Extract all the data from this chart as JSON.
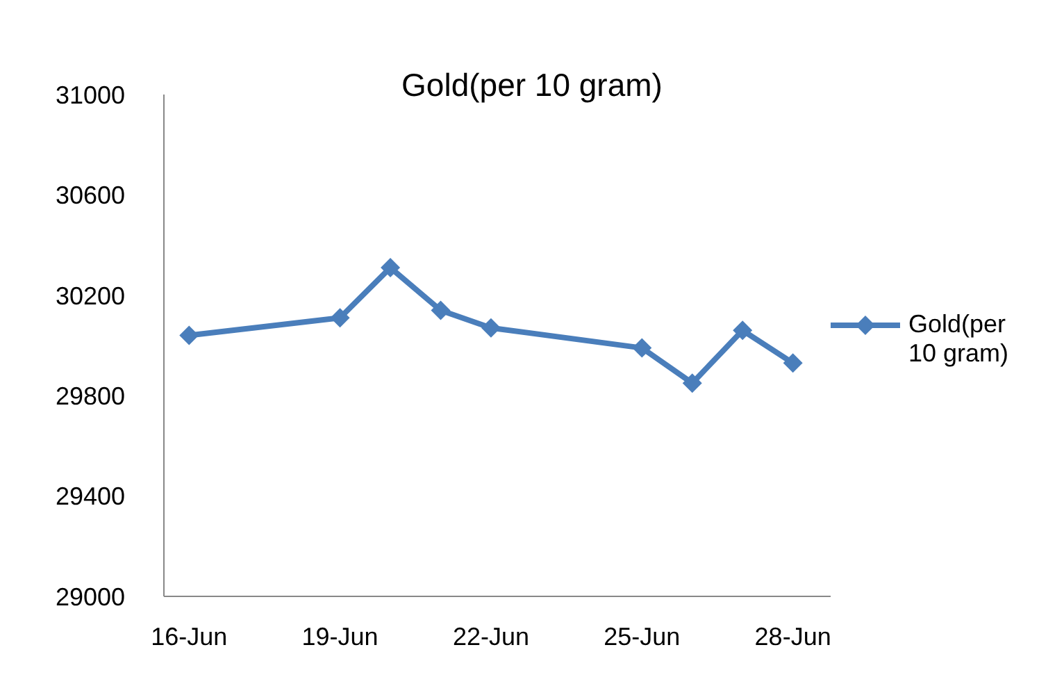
{
  "chart_data": {
    "type": "line",
    "title": "Gold(per 10 gram)",
    "x": [
      "--06-16",
      "--06-19",
      "--06-20",
      "--06-21",
      "--06-22",
      "--06-25",
      "--06-26",
      "--06-27",
      "--06-28"
    ],
    "series": [
      {
        "name": "Gold(per 10 gram)",
        "color": "#4a7ebb",
        "values": [
          30040,
          30110,
          30310,
          30140,
          30070,
          29990,
          29850,
          30060,
          29930
        ]
      }
    ],
    "xlim": [
      "--06-15T12:00",
      "--06-28T18:00"
    ],
    "xticks": [
      {
        "value": "--06-16",
        "label": "16-Jun"
      },
      {
        "value": "--06-19",
        "label": "19-Jun"
      },
      {
        "value": "--06-22",
        "label": "22-Jun"
      },
      {
        "value": "--06-25",
        "label": "25-Jun"
      },
      {
        "value": "--06-28",
        "label": "28-Jun"
      }
    ],
    "ylim": [
      29000,
      31000
    ],
    "yticks": [
      29000,
      29400,
      29800,
      30200,
      30600,
      31000
    ],
    "grid": false,
    "legend": "right",
    "marker": "diamond",
    "line_style": "solid"
  }
}
